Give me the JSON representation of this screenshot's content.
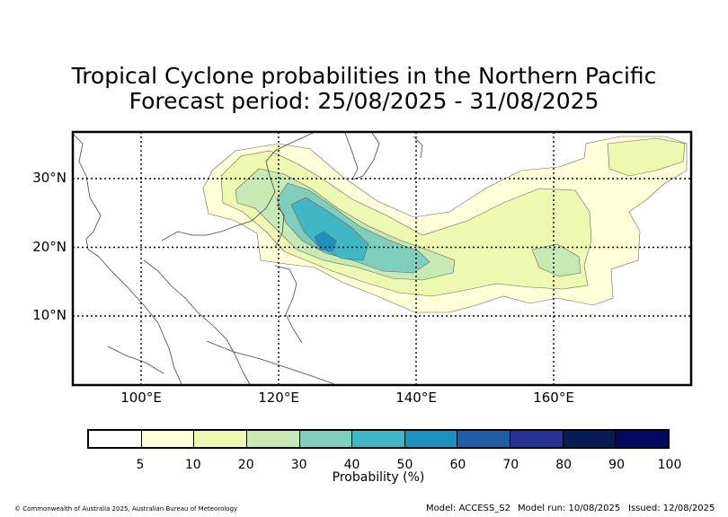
{
  "title": {
    "line1": "Tropical Cyclone probabilities in the Northern Pacific",
    "line2": "Forecast period: 25/08/2025 - 31/08/2025"
  },
  "map": {
    "lat_labels": [
      "30°N",
      "20°N",
      "10°N"
    ],
    "lon_labels": [
      "100°E",
      "120°E",
      "140°E",
      "160°E"
    ],
    "lat_lines": [
      30,
      20,
      10
    ],
    "lon_lines": [
      100,
      120,
      140,
      160
    ],
    "extent": {
      "lon_min": 90,
      "lon_max": 180,
      "lat_min": 0,
      "lat_max": 37
    },
    "grid": "dotted"
  },
  "colorbar": {
    "label": "Probability (%)",
    "ticks": [
      "5",
      "10",
      "20",
      "30",
      "40",
      "50",
      "60",
      "70",
      "80",
      "90",
      "100"
    ],
    "colors": [
      "#ffffff",
      "#ffffd9",
      "#edf8b1",
      "#c7e9b4",
      "#7fcdbb",
      "#41b6c4",
      "#1d91c0",
      "#225ea8",
      "#253494",
      "#081d58",
      "#000a5e"
    ]
  },
  "footer": {
    "copyright": "© Commonwealth of Australia 2025, Australian Bureau of Meteorology",
    "model": "Model: ACCESS_S2",
    "model_run": "Model run: 10/08/2025",
    "issued": "Issued: 12/08/2025"
  }
}
